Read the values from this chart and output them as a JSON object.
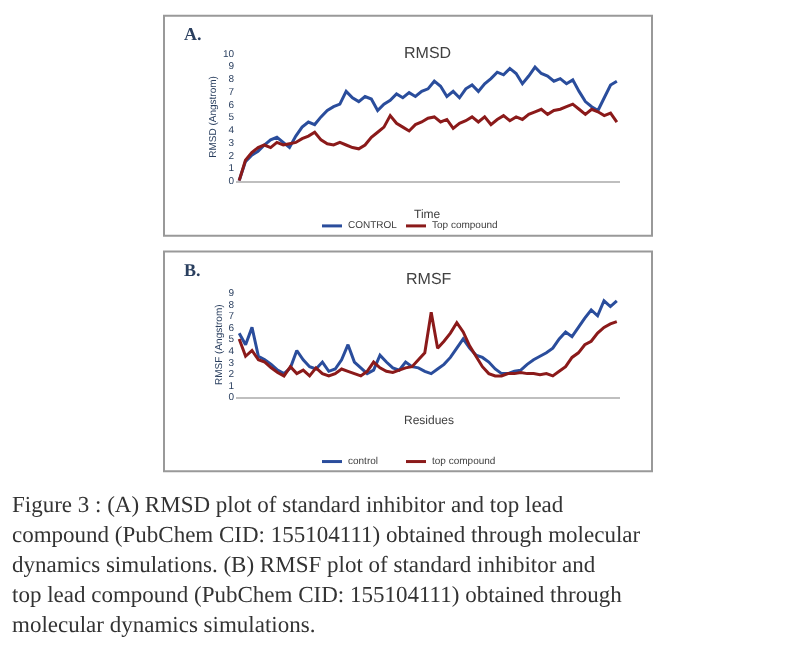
{
  "chart_data": [
    {
      "type": "line",
      "title": "RMSD",
      "xlabel": "Time",
      "ylabel": "RMSD (Angstrom)",
      "categories": [
        null,
        null,
        null,
        null,
        null,
        null,
        null,
        null,
        null,
        null,
        null,
        null,
        null,
        null,
        null,
        null,
        null,
        null,
        null,
        null,
        null,
        null,
        null,
        null,
        null,
        null,
        null,
        null,
        null,
        null,
        null,
        null,
        null,
        null,
        null,
        null,
        null,
        null,
        null,
        null,
        null,
        null,
        null,
        null,
        null,
        null,
        null,
        null,
        null,
        null,
        null,
        null,
        null,
        null,
        null,
        null,
        null,
        null,
        null,
        null,
        null
      ],
      "series": [
        {
          "name": "CONTROL",
          "color": "#2a4d9c",
          "values": [
            0,
            1.5,
            2,
            2.3,
            2.8,
            3.2,
            3.4,
            3,
            2.6,
            3.5,
            4.2,
            4.6,
            4.4,
            5,
            5.5,
            5.8,
            6,
            7,
            6.5,
            6.2,
            6.6,
            6.4,
            5.5,
            6,
            6.3,
            6.8,
            6.5,
            6.9,
            6.6,
            7,
            7.2,
            7.8,
            7.4,
            6.6,
            7,
            6.5,
            7.2,
            7.5,
            7,
            7.6,
            8,
            8.5,
            8.3,
            8.8,
            8.4,
            7.6,
            8.2,
            8.9,
            8.4,
            8.2,
            7.8,
            8,
            7.6,
            7.9,
            7,
            6.2,
            5.8,
            5.5,
            6.5,
            7.5,
            7.8
          ]
        },
        {
          "name": "Top compound",
          "color": "#8b1a1a",
          "values": [
            0,
            1.6,
            2.2,
            2.6,
            2.8,
            2.6,
            3,
            2.8,
            2.9,
            3,
            3.3,
            3.5,
            3.8,
            3.2,
            2.9,
            2.8,
            3,
            2.8,
            2.6,
            2.5,
            2.8,
            3.4,
            3.8,
            4.2,
            5.1,
            4.5,
            4.2,
            3.9,
            4.4,
            4.6,
            4.9,
            5,
            4.6,
            4.8,
            4.1,
            4.5,
            4.7,
            5,
            4.6,
            5,
            4.4,
            4.8,
            5.1,
            4.7,
            5,
            4.8,
            5.2,
            5.4,
            5.6,
            5.2,
            5.5,
            5.6,
            5.8,
            6,
            5.6,
            5.2,
            5.6,
            5.4,
            5.1,
            5.3,
            4.6
          ]
        }
      ],
      "ylim": [
        0,
        10
      ],
      "yticks": [
        0,
        1,
        2,
        3,
        4,
        5,
        6,
        7,
        8,
        9,
        10
      ],
      "legend": "bottom",
      "annotations": [
        "A."
      ]
    },
    {
      "type": "line",
      "title": "RMSF",
      "xlabel": "Residues",
      "ylabel": "RMSF (Angstrom)",
      "categories": [
        null,
        null,
        null,
        null,
        null,
        null,
        null,
        null,
        null,
        null,
        null,
        null,
        null,
        null,
        null,
        null,
        null,
        null,
        null,
        null,
        null,
        null,
        null,
        null,
        null,
        null,
        null,
        null,
        null,
        null,
        null,
        null,
        null,
        null,
        null,
        null,
        null,
        null,
        null,
        null,
        null,
        null,
        null,
        null,
        null,
        null,
        null,
        null,
        null,
        null,
        null,
        null,
        null,
        null,
        null,
        null,
        null,
        null,
        null,
        null
      ],
      "series": [
        {
          "name": "control",
          "color": "#2a4d9c",
          "values": [
            5.5,
            4.5,
            6,
            3.5,
            3.2,
            2.8,
            2.3,
            2,
            2.5,
            4,
            3.2,
            2.6,
            2.4,
            3,
            2.2,
            2.4,
            3.2,
            4.5,
            3,
            2.5,
            2,
            2.3,
            3.6,
            3,
            2.5,
            2.3,
            3,
            2.6,
            2.5,
            2.2,
            2,
            2.4,
            2.8,
            3.4,
            4.2,
            5,
            4.2,
            3.6,
            3.4,
            3,
            2.4,
            2,
            2,
            2.2,
            2.3,
            2.8,
            3.2,
            3.5,
            3.8,
            4.2,
            5,
            5.6,
            5.2,
            6,
            6.8,
            7.5,
            7,
            8.3,
            7.8,
            8.3
          ]
        },
        {
          "name": "top compound",
          "color": "#8b1a1a",
          "values": [
            5,
            3.5,
            4,
            3.2,
            3,
            2.5,
            2.1,
            1.8,
            2.6,
            2,
            2.3,
            1.8,
            2.5,
            2,
            1.8,
            2,
            2.4,
            2.2,
            2,
            1.8,
            2.2,
            3,
            2.5,
            2.2,
            2.1,
            2.3,
            2.5,
            2.6,
            3.2,
            3.8,
            7.3,
            4.2,
            4.8,
            5.5,
            6.4,
            5.6,
            4.4,
            3.5,
            2.6,
            2,
            1.8,
            1.8,
            2,
            2,
            2.1,
            2,
            2,
            1.9,
            2,
            1.8,
            2.2,
            2.6,
            3.4,
            3.8,
            4.5,
            4.8,
            5.5,
            6,
            6.3,
            6.5
          ]
        }
      ],
      "ylim": [
        0,
        9
      ],
      "yticks": [
        0,
        1,
        2,
        3,
        4,
        5,
        6,
        7,
        8,
        9
      ],
      "legend": "bottom",
      "annotations": [
        "B.",
        "Figure 3 : (A) RMSD plot of standard inhibitor and top lead compound (PubChem CID: 155104111) obtained through molecular dynamics simulations. (B) RMSF plot of standard inhibitor and top lead compound (PubChem CID: 155104111) obtained through molecular dynamics simulations."
      ]
    }
  ]
}
